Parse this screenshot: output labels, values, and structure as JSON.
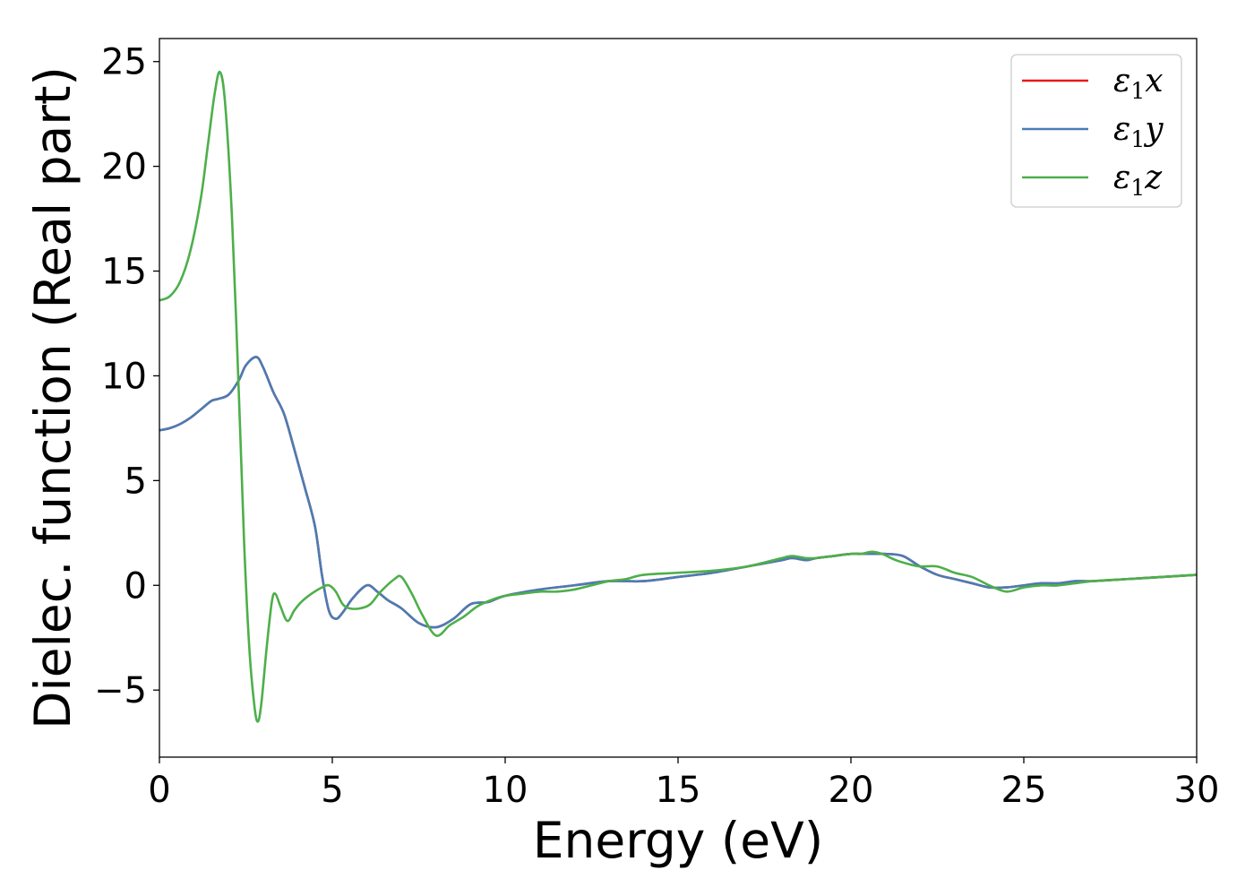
{
  "chart_data": {
    "type": "line",
    "xlabel": "Energy (eV)",
    "ylabel": "Dielec. function (Real part)",
    "xlim": [
      0,
      30
    ],
    "ylim": [
      -8.2,
      26.1
    ],
    "xticks": [
      0,
      5,
      10,
      15,
      20,
      25,
      30
    ],
    "yticks": [
      -5,
      0,
      5,
      10,
      15,
      20,
      25
    ],
    "xtick_labels": [
      "0",
      "5",
      "10",
      "15",
      "20",
      "25",
      "30"
    ],
    "ytick_labels": [
      "−5",
      "0",
      "5",
      "10",
      "15",
      "20",
      "25"
    ],
    "grid": false,
    "legend_position": "top-right",
    "series": [
      {
        "name": "ε1x",
        "legend": {
          "base": "ε",
          "sub": "1",
          "suffix": "x"
        },
        "color": "#e41a1c",
        "x": [
          0,
          0.3,
          0.6,
          0.9,
          1.2,
          1.5,
          1.7,
          2.0,
          2.3,
          2.5,
          2.8,
          3.0,
          3.3,
          3.6,
          3.9,
          4.2,
          4.5,
          4.7,
          4.9,
          5.1,
          5.3,
          5.6,
          6.0,
          6.3,
          6.6,
          7.0,
          7.5,
          8.0,
          8.5,
          9.0,
          9.5,
          10.0,
          11.0,
          12.0,
          13.0,
          14.0,
          15.0,
          16.0,
          17.0,
          18.0,
          18.3,
          18.7,
          19.0,
          19.5,
          20.0,
          20.5,
          21.0,
          21.5,
          22.0,
          22.5,
          23.0,
          23.5,
          24.0,
          24.5,
          25.0,
          25.5,
          26.0,
          26.5,
          27.0,
          28.0,
          29.0,
          30.0
        ],
        "values": [
          7.4,
          7.5,
          7.7,
          8.0,
          8.4,
          8.8,
          8.9,
          9.1,
          9.8,
          10.5,
          10.9,
          10.4,
          9.2,
          8.2,
          6.5,
          4.7,
          2.8,
          0.5,
          -1.2,
          -1.6,
          -1.3,
          -0.6,
          0.0,
          -0.3,
          -0.7,
          -1.1,
          -1.8,
          -2.0,
          -1.6,
          -0.9,
          -0.8,
          -0.5,
          -0.2,
          0.0,
          0.2,
          0.2,
          0.4,
          0.6,
          0.9,
          1.2,
          1.3,
          1.2,
          1.3,
          1.4,
          1.5,
          1.5,
          1.5,
          1.4,
          0.9,
          0.5,
          0.3,
          0.1,
          -0.1,
          -0.1,
          0.0,
          0.1,
          0.1,
          0.2,
          0.2,
          0.3,
          0.4,
          0.5
        ]
      },
      {
        "name": "ε1y",
        "legend": {
          "base": "ε",
          "sub": "1",
          "suffix": "y"
        },
        "color": "#4a7cb5",
        "x": [
          0,
          0.3,
          0.6,
          0.9,
          1.2,
          1.5,
          1.7,
          2.0,
          2.3,
          2.5,
          2.8,
          3.0,
          3.3,
          3.6,
          3.9,
          4.2,
          4.5,
          4.7,
          4.9,
          5.1,
          5.3,
          5.6,
          6.0,
          6.3,
          6.6,
          7.0,
          7.5,
          8.0,
          8.5,
          9.0,
          9.5,
          10.0,
          11.0,
          12.0,
          13.0,
          14.0,
          15.0,
          16.0,
          17.0,
          18.0,
          18.3,
          18.7,
          19.0,
          19.5,
          20.0,
          20.5,
          21.0,
          21.5,
          22.0,
          22.5,
          23.0,
          23.5,
          24.0,
          24.5,
          25.0,
          25.5,
          26.0,
          26.5,
          27.0,
          28.0,
          29.0,
          30.0
        ],
        "values": [
          7.4,
          7.5,
          7.7,
          8.0,
          8.4,
          8.8,
          8.9,
          9.1,
          9.8,
          10.5,
          10.9,
          10.4,
          9.2,
          8.2,
          6.5,
          4.7,
          2.8,
          0.5,
          -1.2,
          -1.6,
          -1.3,
          -0.6,
          0.0,
          -0.3,
          -0.7,
          -1.1,
          -1.8,
          -2.0,
          -1.6,
          -0.9,
          -0.8,
          -0.5,
          -0.2,
          0.0,
          0.2,
          0.2,
          0.4,
          0.6,
          0.9,
          1.2,
          1.3,
          1.2,
          1.3,
          1.4,
          1.5,
          1.5,
          1.5,
          1.4,
          0.9,
          0.5,
          0.3,
          0.1,
          -0.1,
          -0.1,
          0.0,
          0.1,
          0.1,
          0.2,
          0.2,
          0.3,
          0.4,
          0.5
        ]
      },
      {
        "name": "ε1z",
        "legend": {
          "base": "ε",
          "sub": "1",
          "suffix": "z"
        },
        "color": "#4daf4a",
        "x": [
          0,
          0.3,
          0.6,
          0.9,
          1.2,
          1.4,
          1.6,
          1.75,
          1.9,
          2.1,
          2.3,
          2.45,
          2.6,
          2.75,
          2.85,
          2.95,
          3.1,
          3.25,
          3.35,
          3.5,
          3.7,
          3.9,
          4.1,
          4.4,
          4.7,
          4.9,
          5.1,
          5.3,
          5.5,
          5.8,
          6.1,
          6.4,
          6.8,
          7.0,
          7.3,
          7.6,
          8.0,
          8.4,
          8.8,
          9.2,
          9.6,
          10.0,
          10.5,
          11.0,
          11.5,
          12.0,
          12.5,
          13.0,
          13.5,
          14.0,
          15.0,
          16.0,
          17.0,
          18.0,
          18.3,
          18.7,
          19.0,
          19.5,
          20.0,
          20.3,
          20.6,
          20.9,
          21.3,
          21.7,
          22.0,
          22.5,
          23.0,
          23.5,
          24.0,
          24.5,
          25.0,
          25.5,
          26.0,
          27.0,
          28.0,
          29.0,
          30.0
        ],
        "values": [
          13.6,
          13.8,
          14.5,
          16.0,
          18.5,
          21.0,
          23.5,
          24.5,
          23.0,
          17.5,
          9.0,
          2.0,
          -3.0,
          -5.8,
          -6.5,
          -5.6,
          -3.0,
          -0.8,
          -0.4,
          -1.0,
          -1.7,
          -1.2,
          -0.8,
          -0.4,
          -0.1,
          0.0,
          -0.3,
          -0.9,
          -1.1,
          -1.1,
          -0.9,
          -0.3,
          0.3,
          0.4,
          -0.4,
          -1.4,
          -2.4,
          -1.9,
          -1.5,
          -1.0,
          -0.7,
          -0.5,
          -0.4,
          -0.3,
          -0.3,
          -0.2,
          0.0,
          0.2,
          0.3,
          0.5,
          0.6,
          0.7,
          0.9,
          1.3,
          1.4,
          1.3,
          1.3,
          1.4,
          1.5,
          1.5,
          1.6,
          1.5,
          1.2,
          1.0,
          0.9,
          0.9,
          0.6,
          0.4,
          0.0,
          -0.3,
          -0.1,
          0.0,
          0.0,
          0.2,
          0.3,
          0.4,
          0.5
        ]
      }
    ]
  }
}
